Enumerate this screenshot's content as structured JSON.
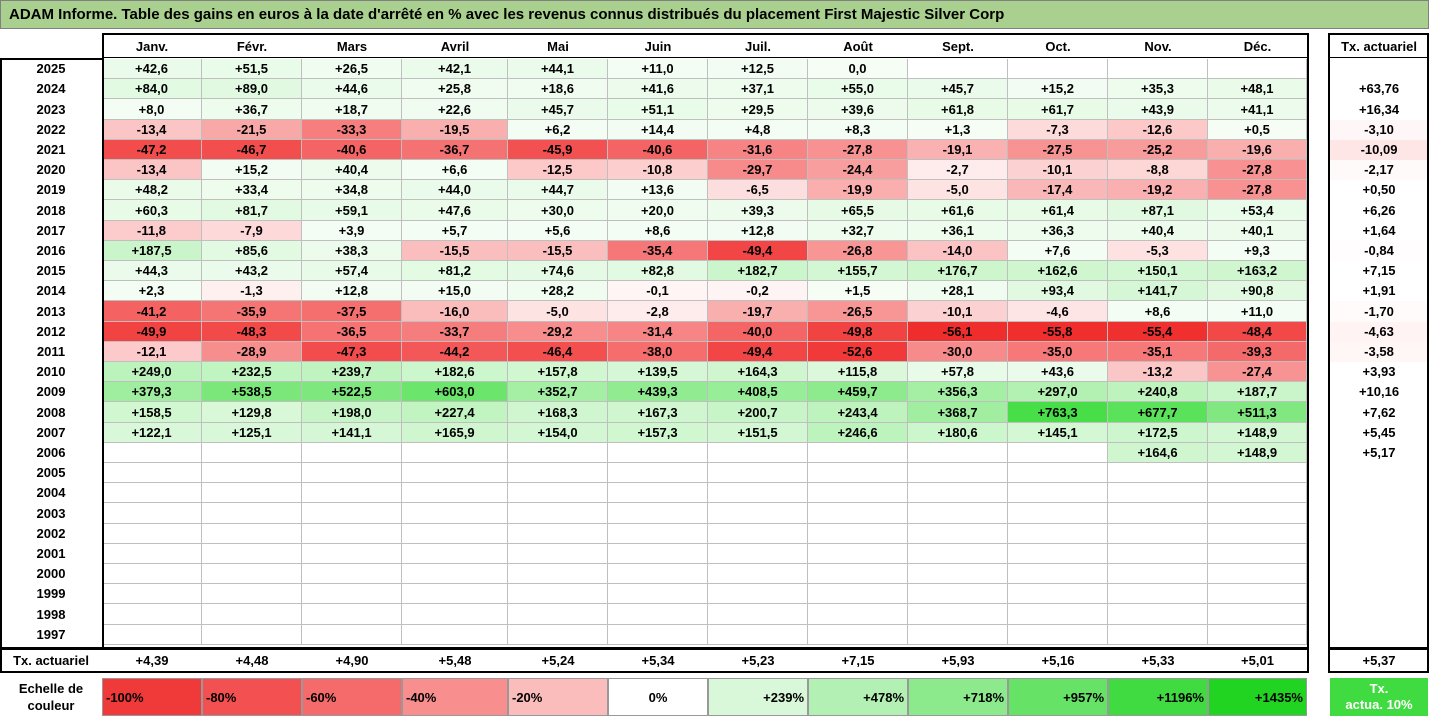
{
  "title": "ADAM Informe. Table des gains en euros à la date d'arrêté en % avec les revenus connus distribués du placement First Majestic Silver Corp",
  "chart_data": {
    "type": "table",
    "months": [
      "Janv.",
      "Févr.",
      "Mars",
      "Avril",
      "Mai",
      "Juin",
      "Juil.",
      "Août",
      "Sept.",
      "Oct.",
      "Nov.",
      "Déc."
    ],
    "rate_header": "Tx. actuariel",
    "rows": [
      {
        "year": "2025",
        "values": [
          "+42,6",
          "+51,5",
          "+26,5",
          "+42,1",
          "+44,1",
          "+11,0",
          "+12,5",
          "0,0",
          "",
          "",
          "",
          ""
        ],
        "rate": ""
      },
      {
        "year": "2024",
        "values": [
          "+84,0",
          "+89,0",
          "+44,6",
          "+25,8",
          "+18,6",
          "+41,6",
          "+37,1",
          "+55,0",
          "+45,7",
          "+15,2",
          "+35,3",
          "+48,1"
        ],
        "rate": "+63,76"
      },
      {
        "year": "2023",
        "values": [
          "+8,0",
          "+36,7",
          "+18,7",
          "+22,6",
          "+45,7",
          "+51,1",
          "+29,5",
          "+39,6",
          "+61,8",
          "+61,7",
          "+43,9",
          "+41,1"
        ],
        "rate": "+16,34"
      },
      {
        "year": "2022",
        "values": [
          "-13,4",
          "-21,5",
          "-33,3",
          "-19,5",
          "+6,2",
          "+14,4",
          "+4,8",
          "+8,3",
          "+1,3",
          "-7,3",
          "-12,6",
          "+0,5"
        ],
        "rate": "-3,10"
      },
      {
        "year": "2021",
        "values": [
          "-47,2",
          "-46,7",
          "-40,6",
          "-36,7",
          "-45,9",
          "-40,6",
          "-31,6",
          "-27,8",
          "-19,1",
          "-27,5",
          "-25,2",
          "-19,6"
        ],
        "rate": "-10,09"
      },
      {
        "year": "2020",
        "values": [
          "-13,4",
          "+15,2",
          "+40,4",
          "+6,6",
          "-12,5",
          "-10,8",
          "-29,7",
          "-24,4",
          "-2,7",
          "-10,1",
          "-8,8",
          "-27,8"
        ],
        "rate": "-2,17"
      },
      {
        "year": "2019",
        "values": [
          "+48,2",
          "+33,4",
          "+34,8",
          "+44,0",
          "+44,7",
          "+13,6",
          "-6,5",
          "-19,9",
          "-5,0",
          "-17,4",
          "-19,2",
          "-27,8"
        ],
        "rate": "+0,50"
      },
      {
        "year": "2018",
        "values": [
          "+60,3",
          "+81,7",
          "+59,1",
          "+47,6",
          "+30,0",
          "+20,0",
          "+39,3",
          "+65,5",
          "+61,6",
          "+61,4",
          "+87,1",
          "+53,4"
        ],
        "rate": "+6,26"
      },
      {
        "year": "2017",
        "values": [
          "-11,8",
          "-7,9",
          "+3,9",
          "+5,7",
          "+5,6",
          "+8,6",
          "+12,8",
          "+32,7",
          "+36,1",
          "+36,3",
          "+40,4",
          "+40,1"
        ],
        "rate": "+1,64"
      },
      {
        "year": "2016",
        "values": [
          "+187,5",
          "+85,6",
          "+38,3",
          "-15,5",
          "-15,5",
          "-35,4",
          "-49,4",
          "-26,8",
          "-14,0",
          "+7,6",
          "-5,3",
          "+9,3"
        ],
        "rate": "-0,84"
      },
      {
        "year": "2015",
        "values": [
          "+44,3",
          "+43,2",
          "+57,4",
          "+81,2",
          "+74,6",
          "+82,8",
          "+182,7",
          "+155,7",
          "+176,7",
          "+162,6",
          "+150,1",
          "+163,2"
        ],
        "rate": "+7,15"
      },
      {
        "year": "2014",
        "values": [
          "+2,3",
          "-1,3",
          "+12,8",
          "+15,0",
          "+28,2",
          "-0,1",
          "-0,2",
          "+1,5",
          "+28,1",
          "+93,4",
          "+141,7",
          "+90,8"
        ],
        "rate": "+1,91"
      },
      {
        "year": "2013",
        "values": [
          "-41,2",
          "-35,9",
          "-37,5",
          "-16,0",
          "-5,0",
          "-2,8",
          "-19,7",
          "-26,5",
          "-10,1",
          "-4,6",
          "+8,6",
          "+11,0"
        ],
        "rate": "-1,70"
      },
      {
        "year": "2012",
        "values": [
          "-49,9",
          "-48,3",
          "-36,5",
          "-33,7",
          "-29,2",
          "-31,4",
          "-40,0",
          "-49,8",
          "-56,1",
          "-55,8",
          "-55,4",
          "-48,4"
        ],
        "rate": "-4,63"
      },
      {
        "year": "2011",
        "values": [
          "-12,1",
          "-28,9",
          "-47,3",
          "-44,2",
          "-46,4",
          "-38,0",
          "-49,4",
          "-52,6",
          "-30,0",
          "-35,0",
          "-35,1",
          "-39,3"
        ],
        "rate": "-3,58"
      },
      {
        "year": "2010",
        "values": [
          "+249,0",
          "+232,5",
          "+239,7",
          "+182,6",
          "+157,8",
          "+139,5",
          "+164,3",
          "+115,8",
          "+57,8",
          "+43,6",
          "-13,2",
          "-27,4"
        ],
        "rate": "+3,93"
      },
      {
        "year": "2009",
        "values": [
          "+379,3",
          "+538,5",
          "+522,5",
          "+603,0",
          "+352,7",
          "+439,3",
          "+408,5",
          "+459,7",
          "+356,3",
          "+297,0",
          "+240,8",
          "+187,7"
        ],
        "rate": "+10,16"
      },
      {
        "year": "2008",
        "values": [
          "+158,5",
          "+129,8",
          "+198,0",
          "+227,4",
          "+168,3",
          "+167,3",
          "+200,7",
          "+243,4",
          "+368,7",
          "+763,3",
          "+677,7",
          "+511,3"
        ],
        "rate": "+7,62"
      },
      {
        "year": "2007",
        "values": [
          "+122,1",
          "+125,1",
          "+141,1",
          "+165,9",
          "+154,0",
          "+157,3",
          "+151,5",
          "+246,6",
          "+180,6",
          "+145,1",
          "+172,5",
          "+148,9"
        ],
        "rate": "+5,45"
      },
      {
        "year": "2006",
        "values": [
          "",
          "",
          "",
          "",
          "",
          "",
          "",
          "",
          "",
          "",
          "+164,6",
          "+148,9"
        ],
        "rate": "+5,17"
      },
      {
        "year": "2005",
        "values": [
          "",
          "",
          "",
          "",
          "",
          "",
          "",
          "",
          "",
          "",
          "",
          ""
        ],
        "rate": ""
      },
      {
        "year": "2004",
        "values": [
          "",
          "",
          "",
          "",
          "",
          "",
          "",
          "",
          "",
          "",
          "",
          ""
        ],
        "rate": ""
      },
      {
        "year": "2003",
        "values": [
          "",
          "",
          "",
          "",
          "",
          "",
          "",
          "",
          "",
          "",
          "",
          ""
        ],
        "rate": ""
      },
      {
        "year": "2002",
        "values": [
          "",
          "",
          "",
          "",
          "",
          "",
          "",
          "",
          "",
          "",
          "",
          ""
        ],
        "rate": ""
      },
      {
        "year": "2001",
        "values": [
          "",
          "",
          "",
          "",
          "",
          "",
          "",
          "",
          "",
          "",
          "",
          ""
        ],
        "rate": ""
      },
      {
        "year": "2000",
        "values": [
          "",
          "",
          "",
          "",
          "",
          "",
          "",
          "",
          "",
          "",
          "",
          ""
        ],
        "rate": ""
      },
      {
        "year": "1999",
        "values": [
          "",
          "",
          "",
          "",
          "",
          "",
          "",
          "",
          "",
          "",
          "",
          ""
        ],
        "rate": ""
      },
      {
        "year": "1998",
        "values": [
          "",
          "",
          "",
          "",
          "",
          "",
          "",
          "",
          "",
          "",
          "",
          ""
        ],
        "rate": ""
      },
      {
        "year": "1997",
        "values": [
          "",
          "",
          "",
          "",
          "",
          "",
          "",
          "",
          "",
          "",
          "",
          ""
        ],
        "rate": ""
      }
    ],
    "footer": {
      "label": "Tx. actuariel",
      "values": [
        "+4,39",
        "+4,48",
        "+4,90",
        "+5,48",
        "+5,24",
        "+5,34",
        "+5,23",
        "+7,15",
        "+5,93",
        "+5,16",
        "+5,33",
        "+5,01"
      ],
      "rate": "+5,37"
    },
    "legend": {
      "label_line1": "Echelle de",
      "label_line2": "couleur",
      "items": [
        {
          "text": "-100%",
          "color": "#f03a3a",
          "align": "left"
        },
        {
          "text": "-80%",
          "color": "#f35151",
          "align": "left"
        },
        {
          "text": "-60%",
          "color": "#f56b6b",
          "align": "left"
        },
        {
          "text": "-40%",
          "color": "#f88e8e",
          "align": "left"
        },
        {
          "text": "-20%",
          "color": "#fbbcbc",
          "align": "left"
        },
        {
          "text": "0%",
          "color": "#ffffff",
          "align": "center"
        },
        {
          "text": "+239%",
          "color": "#d9f7d9",
          "align": "right"
        },
        {
          "text": "+478%",
          "color": "#b3f0b3",
          "align": "right"
        },
        {
          "text": "+718%",
          "color": "#8ce98c",
          "align": "right"
        },
        {
          "text": "+957%",
          "color": "#66e266",
          "align": "right"
        },
        {
          "text": "+1196%",
          "color": "#40db40",
          "align": "right"
        },
        {
          "text": "+1435%",
          "color": "#22d422",
          "align": "right"
        }
      ],
      "rate_line1": "Tx.",
      "rate_line2": "actua. 10%",
      "rate_color": "#40db40"
    }
  }
}
